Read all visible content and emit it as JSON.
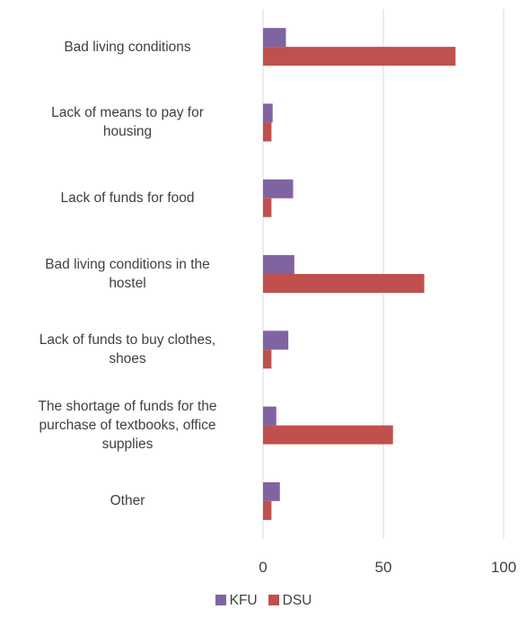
{
  "chart_data": {
    "type": "bar",
    "orientation": "horizontal",
    "categories": [
      "Bad living conditions",
      "Lack of means to pay for housing",
      "Lack of funds for food",
      "Bad living conditions in the hostel",
      "Lack of funds to buy clothes, shoes",
      "The shortage of funds for the purchase of textbooks, office supplies",
      "Other"
    ],
    "category_lines": [
      [
        "Bad living conditions"
      ],
      [
        "Lack of means to pay for",
        "housing"
      ],
      [
        "Lack of funds for food"
      ],
      [
        "Bad living conditions in the",
        "hostel"
      ],
      [
        "Lack of funds to buy clothes,",
        "shoes"
      ],
      [
        "The shortage of funds for the",
        "purchase of textbooks, office",
        "supplies"
      ],
      [
        "Other"
      ]
    ],
    "series": [
      {
        "name": "KFU",
        "color": "#8064A2",
        "values": [
          9.5,
          4,
          12.5,
          13,
          10.5,
          5.5,
          7
        ]
      },
      {
        "name": "DSU",
        "color": "#C0504D",
        "values": [
          80,
          3.5,
          3.5,
          67,
          3.5,
          54,
          3.5
        ]
      }
    ],
    "xlim": [
      0,
      100
    ],
    "xticks": [
      "0",
      "50",
      "100"
    ],
    "grid": true,
    "legend_position": "bottom"
  }
}
